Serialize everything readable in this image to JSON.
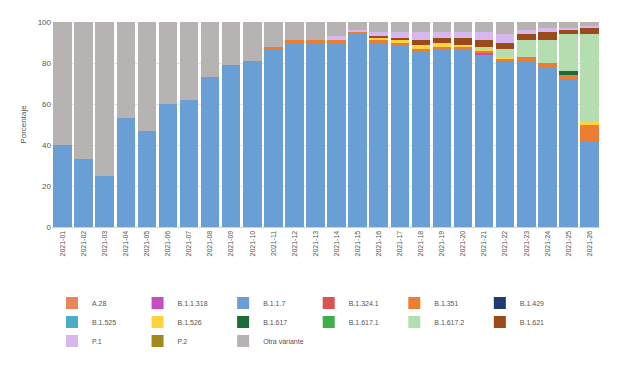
{
  "chart_data": {
    "type": "bar",
    "stacked": true,
    "y_label": "Porcentaje",
    "categories": [
      "2021-01",
      "2021-02",
      "2021-03",
      "2021-04",
      "2021-05",
      "2021-06",
      "2021-07",
      "2021-08",
      "2021-09",
      "2021-10",
      "2021-11",
      "2021-12",
      "2021-13",
      "2021-14",
      "2021-15",
      "2021-16",
      "2021-17",
      "2021-18",
      "2021-19",
      "2021-20",
      "2021-21",
      "2021-22",
      "2021-23",
      "2021-24",
      "2021-25",
      "2021-26"
    ],
    "ylim": [
      0,
      100
    ],
    "yticks": [
      0,
      20,
      40,
      60,
      80,
      100
    ],
    "grid": true,
    "legend": "bottom",
    "series": [
      {
        "name": "A.28",
        "color": "#e8865a",
        "values": [
          0,
          0,
          0,
          0,
          0,
          0,
          0,
          0,
          0,
          0,
          0,
          0,
          0,
          0,
          0,
          0,
          0,
          0,
          0,
          0,
          0,
          0,
          0,
          0,
          0,
          0
        ]
      },
      {
        "name": "B.1.1.318",
        "color": "#c54ec1",
        "values": [
          0,
          0,
          0,
          0,
          0,
          0,
          0,
          0,
          0,
          0,
          0,
          0,
          0,
          0,
          0,
          0,
          0,
          0,
          0,
          0,
          1,
          0,
          0,
          0,
          0,
          0
        ]
      },
      {
        "name": "B.1.1.7",
        "color": "#6a9fd6",
        "values": [
          40,
          33,
          25,
          53,
          47,
          60,
          62,
          73,
          79,
          81,
          87,
          90,
          90,
          90,
          94,
          90,
          89,
          86,
          87,
          87,
          84,
          81,
          81,
          78,
          72,
          42
        ]
      },
      {
        "name": "B.1.324.1",
        "color": "#d9534f",
        "values": [
          0,
          0,
          0,
          0,
          0,
          0,
          0,
          0,
          0,
          0,
          0,
          0,
          0,
          0,
          0,
          0,
          0,
          0,
          0,
          0,
          0,
          0,
          0,
          0,
          0,
          0
        ]
      },
      {
        "name": "B.1.351",
        "color": "#ed7d31",
        "values": [
          0,
          0,
          0,
          0,
          0,
          0,
          0,
          0,
          0,
          0,
          1,
          1,
          1,
          1,
          1,
          1,
          1,
          1,
          1,
          1,
          1,
          1,
          2,
          2,
          2,
          8
        ]
      },
      {
        "name": "B.1.429",
        "color": "#1f3b73",
        "values": [
          0,
          0,
          0,
          0,
          0,
          0,
          0,
          0,
          0,
          0,
          0,
          0,
          0,
          0,
          0,
          0,
          0,
          0,
          0,
          0,
          0,
          0,
          0,
          0,
          0,
          0
        ]
      },
      {
        "name": "B.1.525",
        "color": "#4bacc6",
        "values": [
          0,
          0,
          0,
          0,
          0,
          0,
          0,
          0,
          0,
          0,
          0,
          0,
          0,
          0,
          0,
          0,
          0,
          0,
          0,
          0,
          0,
          0,
          0,
          0,
          0,
          0
        ]
      },
      {
        "name": "B.1.526",
        "color": "#ffd23f",
        "values": [
          0,
          0,
          0,
          0,
          0,
          0,
          0,
          0,
          0,
          0,
          0,
          0,
          0,
          0,
          0,
          1,
          1,
          2,
          2,
          1,
          1,
          1,
          0,
          0,
          0,
          1
        ]
      },
      {
        "name": "B.1.617",
        "color": "#1e6b3a",
        "values": [
          0,
          0,
          0,
          0,
          0,
          0,
          0,
          0,
          0,
          0,
          0,
          0,
          0,
          0,
          0,
          0,
          0,
          0,
          0,
          0,
          0,
          0,
          0,
          0,
          2,
          0
        ]
      },
      {
        "name": "B.1.617.1",
        "color": "#3fae49",
        "values": [
          0,
          0,
          0,
          0,
          0,
          0,
          0,
          0,
          0,
          0,
          0,
          0,
          0,
          0,
          0,
          0,
          0,
          0,
          0,
          0,
          0,
          0,
          0,
          0,
          0,
          0
        ]
      },
      {
        "name": "B.1.617.2",
        "color": "#b4deb0",
        "values": [
          0,
          0,
          0,
          0,
          0,
          0,
          0,
          0,
          0,
          0,
          0,
          0,
          0,
          0,
          0,
          0,
          0,
          0,
          0,
          0,
          1,
          4,
          8,
          11,
          18,
          43
        ]
      },
      {
        "name": "B.1.621",
        "color": "#9c4a1a",
        "values": [
          0,
          0,
          0,
          0,
          0,
          0,
          0,
          0,
          0,
          0,
          0,
          0,
          0,
          0,
          0,
          1,
          1,
          2,
          2,
          3,
          3,
          3,
          3,
          4,
          2,
          3
        ]
      },
      {
        "name": "P.1",
        "color": "#d7b8ec",
        "values": [
          0,
          0,
          0,
          0,
          0,
          0,
          0,
          0,
          0,
          0,
          0,
          0,
          0,
          2,
          1,
          2,
          3,
          4,
          3,
          3,
          4,
          4,
          2,
          2,
          1,
          1
        ]
      },
      {
        "name": "P.2",
        "color": "#a08a1e",
        "values": [
          0,
          0,
          0,
          0,
          0,
          0,
          0,
          0,
          0,
          0,
          0,
          0,
          0,
          0,
          0,
          0,
          0,
          0,
          0,
          0,
          0,
          0,
          0,
          0,
          0,
          0
        ]
      },
      {
        "name": "Otra variante",
        "color": "#b8b3b3",
        "values": [
          60,
          67,
          75,
          47,
          53,
          40,
          38,
          27,
          21,
          19,
          12,
          9,
          9,
          7,
          4,
          5,
          5,
          5,
          5,
          5,
          5,
          6,
          4,
          3,
          3,
          2
        ]
      }
    ]
  }
}
